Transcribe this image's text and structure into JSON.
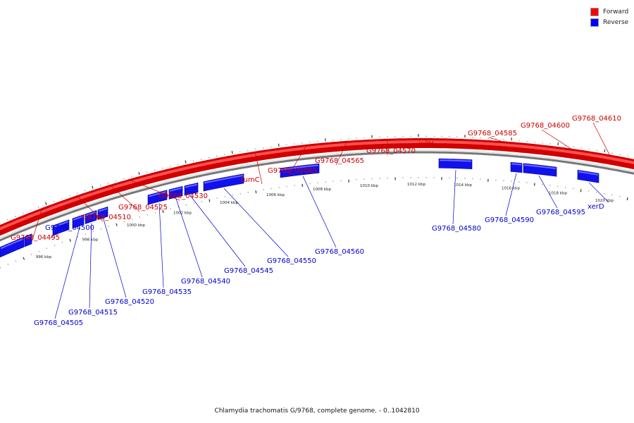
{
  "legend": {
    "forward": {
      "label": "Forward",
      "color": "#ff0000"
    },
    "reverse": {
      "label": "Reverse",
      "color": "#0000ff"
    }
  },
  "caption": "Chlamydia trachomatis G/9768, complete genome. - 0..1042810",
  "axis": {
    "unit": "kbp",
    "tick_labels": [
      "996 kbp",
      "998 kbp",
      "1000 kbp",
      "1002 kbp",
      "1004 kbp",
      "1006 kbp",
      "1008 kbp",
      "1010 kbp",
      "1012 kbp",
      "1014 kbp",
      "1016 kbp",
      "1018 kbp",
      "1020 kbp"
    ]
  },
  "genes": {
    "forward": [
      "G9768_04495",
      "G9768_04510",
      "G9768_04525",
      "G9768_04530",
      "fumC",
      "G9768_00005",
      "G9768_04565",
      "G9768_04570",
      "ispH",
      "G9768_04585",
      "G9768_04600",
      "G9768_04610"
    ],
    "reverse": [
      "G9768_04500",
      "G9768_04505",
      "G9768_04515",
      "G9768_04520",
      "G9768_04535",
      "G9768_04540",
      "G9768_04545",
      "G9768_04550",
      "G9768_04560",
      "G9768_04580",
      "G9768_04590",
      "G9768_04595",
      "xerD"
    ]
  }
}
